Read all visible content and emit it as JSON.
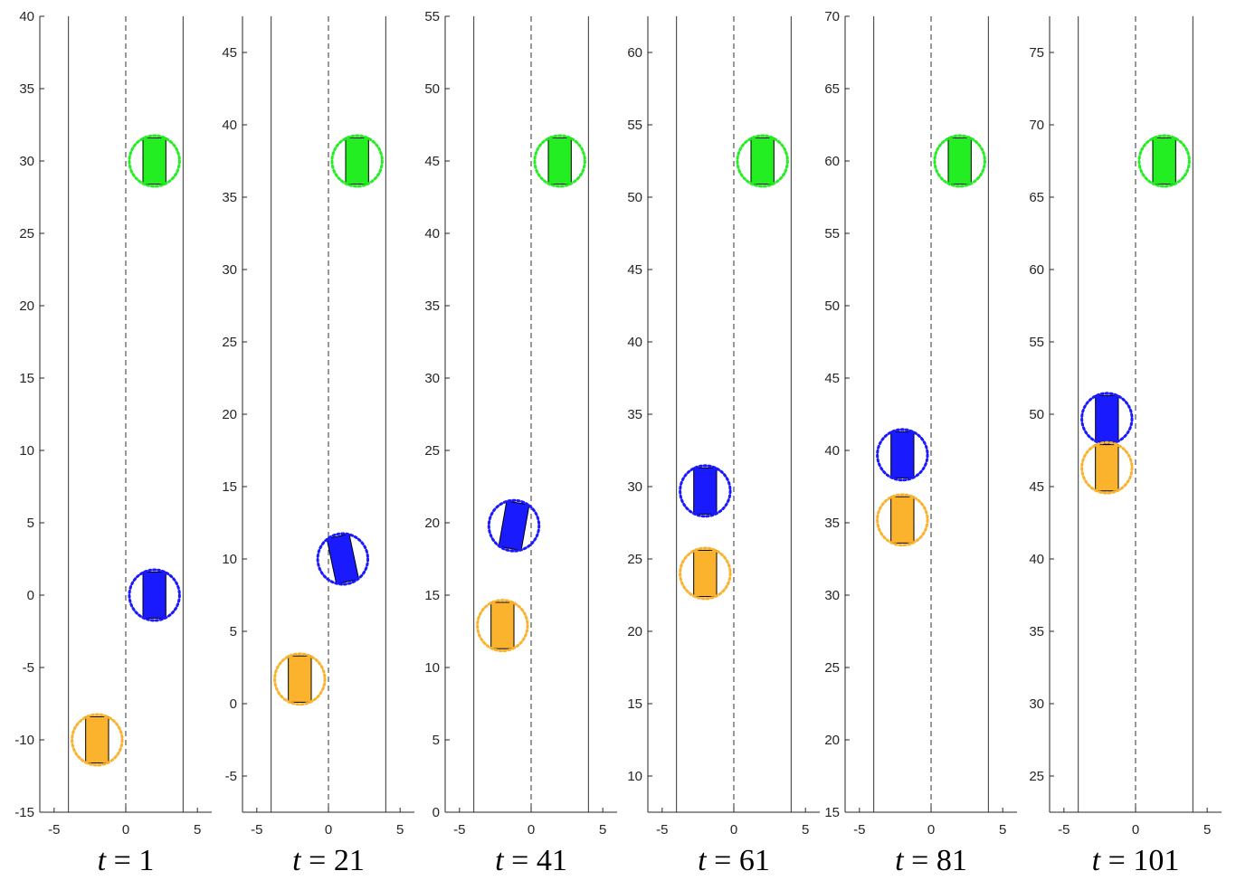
{
  "chart_data": [
    {
      "type": "scatter",
      "label_var": "t",
      "label_num": "1",
      "xlim": [
        -6,
        6
      ],
      "ylim": [
        -15,
        40
      ],
      "xticks": [
        -5,
        0,
        5
      ],
      "yticks": [
        -15,
        -10,
        -5,
        0,
        5,
        10,
        15,
        20,
        25,
        30,
        35,
        40
      ],
      "lane_lines": {
        "solid": [
          -4,
          4
        ],
        "dashed": [
          0
        ]
      },
      "vehicles": [
        {
          "name": "ego",
          "x": 2,
          "y": 0,
          "heading": 0,
          "fill": "#1a1aff",
          "ring": "#1a1aff"
        },
        {
          "name": "follower",
          "x": -2,
          "y": -10,
          "heading": 0,
          "fill": "#fbb32d",
          "ring": "#fbb32d"
        },
        {
          "name": "leader",
          "x": 2,
          "y": 30,
          "heading": 0,
          "fill": "#22ee22",
          "ring": "#22ee22"
        }
      ]
    },
    {
      "type": "scatter",
      "label_var": "t",
      "label_num": "21",
      "xlim": [
        -6,
        6
      ],
      "ylim": [
        -7.5,
        47.5
      ],
      "xticks": [
        -5,
        0,
        5
      ],
      "yticks": [
        -5,
        0,
        5,
        10,
        15,
        20,
        25,
        30,
        35,
        40,
        45
      ],
      "lane_lines": {
        "solid": [
          -4,
          4
        ],
        "dashed": [
          0
        ]
      },
      "vehicles": [
        {
          "name": "ego",
          "x": 1,
          "y": 10,
          "heading": -12,
          "fill": "#1a1aff",
          "ring": "#1a1aff"
        },
        {
          "name": "follower",
          "x": -2,
          "y": 1.7,
          "heading": 0,
          "fill": "#fbb32d",
          "ring": "#fbb32d"
        },
        {
          "name": "leader",
          "x": 2,
          "y": 37.5,
          "heading": 0,
          "fill": "#22ee22",
          "ring": "#22ee22"
        }
      ]
    },
    {
      "type": "scatter",
      "label_var": "t",
      "label_num": "41",
      "xlim": [
        -6,
        6
      ],
      "ylim": [
        0,
        55
      ],
      "xticks": [
        -5,
        0,
        5
      ],
      "yticks": [
        0,
        5,
        10,
        15,
        20,
        25,
        30,
        35,
        40,
        45,
        50,
        55
      ],
      "lane_lines": {
        "solid": [
          -4,
          4
        ],
        "dashed": [
          0
        ]
      },
      "vehicles": [
        {
          "name": "ego",
          "x": -1.2,
          "y": 19.8,
          "heading": 10,
          "fill": "#1a1aff",
          "ring": "#1a1aff"
        },
        {
          "name": "follower",
          "x": -2,
          "y": 12.9,
          "heading": 0,
          "fill": "#fbb32d",
          "ring": "#fbb32d"
        },
        {
          "name": "leader",
          "x": 2,
          "y": 45,
          "heading": 0,
          "fill": "#22ee22",
          "ring": "#22ee22"
        }
      ]
    },
    {
      "type": "scatter",
      "label_var": "t",
      "label_num": "61",
      "xlim": [
        -6,
        6
      ],
      "ylim": [
        7.5,
        62.5
      ],
      "xticks": [
        -5,
        0,
        5
      ],
      "yticks": [
        10,
        15,
        20,
        25,
        30,
        35,
        40,
        45,
        50,
        55,
        60
      ],
      "lane_lines": {
        "solid": [
          -4,
          4
        ],
        "dashed": [
          0
        ]
      },
      "vehicles": [
        {
          "name": "ego",
          "x": -2,
          "y": 29.7,
          "heading": 0,
          "fill": "#1a1aff",
          "ring": "#1a1aff"
        },
        {
          "name": "follower",
          "x": -2,
          "y": 24,
          "heading": 0,
          "fill": "#fbb32d",
          "ring": "#fbb32d"
        },
        {
          "name": "leader",
          "x": 2,
          "y": 52.5,
          "heading": 0,
          "fill": "#22ee22",
          "ring": "#22ee22"
        }
      ]
    },
    {
      "type": "scatter",
      "label_var": "t",
      "label_num": "81",
      "xlim": [
        -6,
        6
      ],
      "ylim": [
        15,
        70
      ],
      "xticks": [
        -5,
        0,
        5
      ],
      "yticks": [
        15,
        20,
        25,
        30,
        35,
        40,
        45,
        50,
        55,
        60,
        65,
        70
      ],
      "lane_lines": {
        "solid": [
          -4,
          4
        ],
        "dashed": [
          0
        ]
      },
      "vehicles": [
        {
          "name": "ego",
          "x": -2,
          "y": 39.7,
          "heading": 0,
          "fill": "#1a1aff",
          "ring": "#1a1aff"
        },
        {
          "name": "follower",
          "x": -2,
          "y": 35.2,
          "heading": 0,
          "fill": "#fbb32d",
          "ring": "#fbb32d"
        },
        {
          "name": "leader",
          "x": 2,
          "y": 60,
          "heading": 0,
          "fill": "#22ee22",
          "ring": "#22ee22"
        }
      ]
    },
    {
      "type": "scatter",
      "label_var": "t",
      "label_num": "101",
      "xlim": [
        -6,
        6
      ],
      "ylim": [
        22.5,
        77.5
      ],
      "xticks": [
        -5,
        0,
        5
      ],
      "yticks": [
        25,
        30,
        35,
        40,
        45,
        50,
        55,
        60,
        65,
        70,
        75
      ],
      "lane_lines": {
        "solid": [
          -4,
          4
        ],
        "dashed": [
          0
        ]
      },
      "vehicles": [
        {
          "name": "ego",
          "x": -2,
          "y": 49.7,
          "heading": 0,
          "fill": "#1a1aff",
          "ring": "#1a1aff"
        },
        {
          "name": "follower",
          "x": -2,
          "y": 46.3,
          "heading": 0,
          "fill": "#fbb32d",
          "ring": "#fbb32d"
        },
        {
          "name": "leader",
          "x": 2,
          "y": 67.5,
          "heading": 0,
          "fill": "#22ee22",
          "ring": "#22ee22"
        }
      ]
    }
  ],
  "vehicle_dims": {
    "width": 1.6,
    "length": 3.2,
    "ring_radius": 1.75
  },
  "axis_color": "#262626"
}
